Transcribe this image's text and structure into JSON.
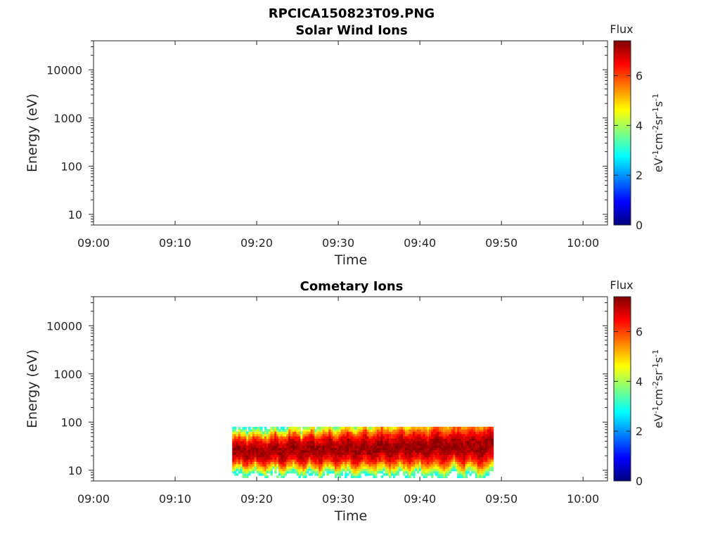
{
  "figure": {
    "title": "RPCICA150823T09.PNG"
  },
  "chart_data": [
    {
      "type": "heatmap",
      "title": "Solar Wind Ions",
      "xlabel": "Time",
      "ylabel": "Energy (eV)",
      "yscale": "log",
      "ylim": [
        6,
        40000
      ],
      "xlim": [
        "09:00",
        "10:03"
      ],
      "x_ticks": [
        "09:00",
        "09:10",
        "09:20",
        "09:30",
        "09:40",
        "09:50",
        "10:00"
      ],
      "y_ticks": [
        "10",
        "100",
        "1000",
        "10000"
      ],
      "colorbar": {
        "label": "Flux",
        "units": "eV-1cm-2sr-1s-1",
        "range": [
          0,
          7.4
        ],
        "ticks": [
          "0",
          "2",
          "4",
          "6"
        ],
        "colormap": "jet"
      },
      "data": "empty"
    },
    {
      "type": "heatmap",
      "title": "Cometary Ions",
      "xlabel": "Time",
      "ylabel": "Energy (eV)",
      "yscale": "log",
      "ylim": [
        6,
        40000
      ],
      "xlim": [
        "09:00",
        "10:03"
      ],
      "x_ticks": [
        "09:00",
        "09:10",
        "09:20",
        "09:30",
        "09:40",
        "09:50",
        "10:00"
      ],
      "y_ticks": [
        "10",
        "100",
        "1000",
        "10000"
      ],
      "colorbar": {
        "label": "Flux",
        "units": "eV-1cm-2sr-1s-1",
        "range": [
          0,
          7.4
        ],
        "ticks": [
          "0",
          "2",
          "4",
          "6"
        ],
        "colormap": "jet"
      },
      "data": {
        "time_start": "09:17",
        "time_end": "09:49",
        "energy_min": 7,
        "energy_max": 80,
        "peak_band_energy": [
          14,
          45
        ],
        "peak_flux": 7.2
      }
    }
  ]
}
